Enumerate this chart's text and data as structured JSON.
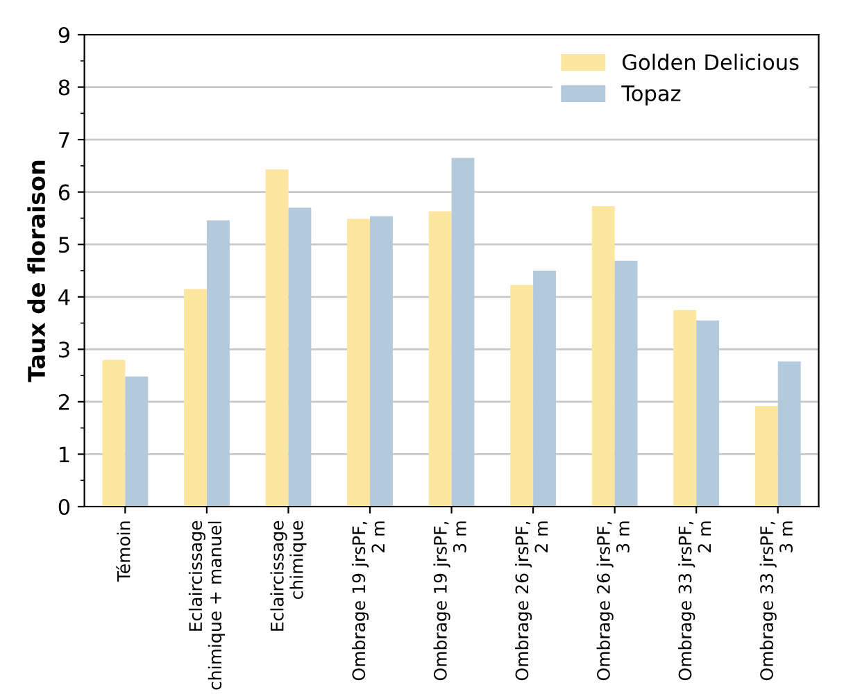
{
  "chart_data": {
    "type": "bar",
    "ylabel": "Taux de floraison",
    "categories": [
      "Témoin",
      "Eclaircissage\nchimique + manuel",
      "Eclaircissage\nchimique",
      "Ombrage 19 jrsPF,\n2 m",
      "Ombrage 19 jrsPF,\n3 m",
      "Ombrage 26 jrsPF,\n2 m",
      "Ombrage 26 jrsPF,\n3 m",
      "Ombrage 33 jrsPF,\n2 m",
      "Ombrage 33 jrsPF,\n3 m"
    ],
    "series": [
      {
        "name": "Golden Delicious",
        "color": "#fde6a0",
        "values": [
          2.8,
          4.15,
          6.43,
          5.49,
          5.63,
          4.23,
          5.73,
          3.75,
          1.92
        ]
      },
      {
        "name": "Topaz",
        "color": "#b3c9dc",
        "values": [
          2.48,
          5.46,
          5.7,
          5.54,
          6.65,
          4.5,
          4.69,
          3.55,
          2.77
        ]
      }
    ],
    "ylim": [
      0,
      9
    ],
    "yticks": [
      0,
      1,
      2,
      3,
      4,
      5,
      6,
      7,
      8,
      9
    ],
    "grid": "y",
    "legend": "top right"
  }
}
